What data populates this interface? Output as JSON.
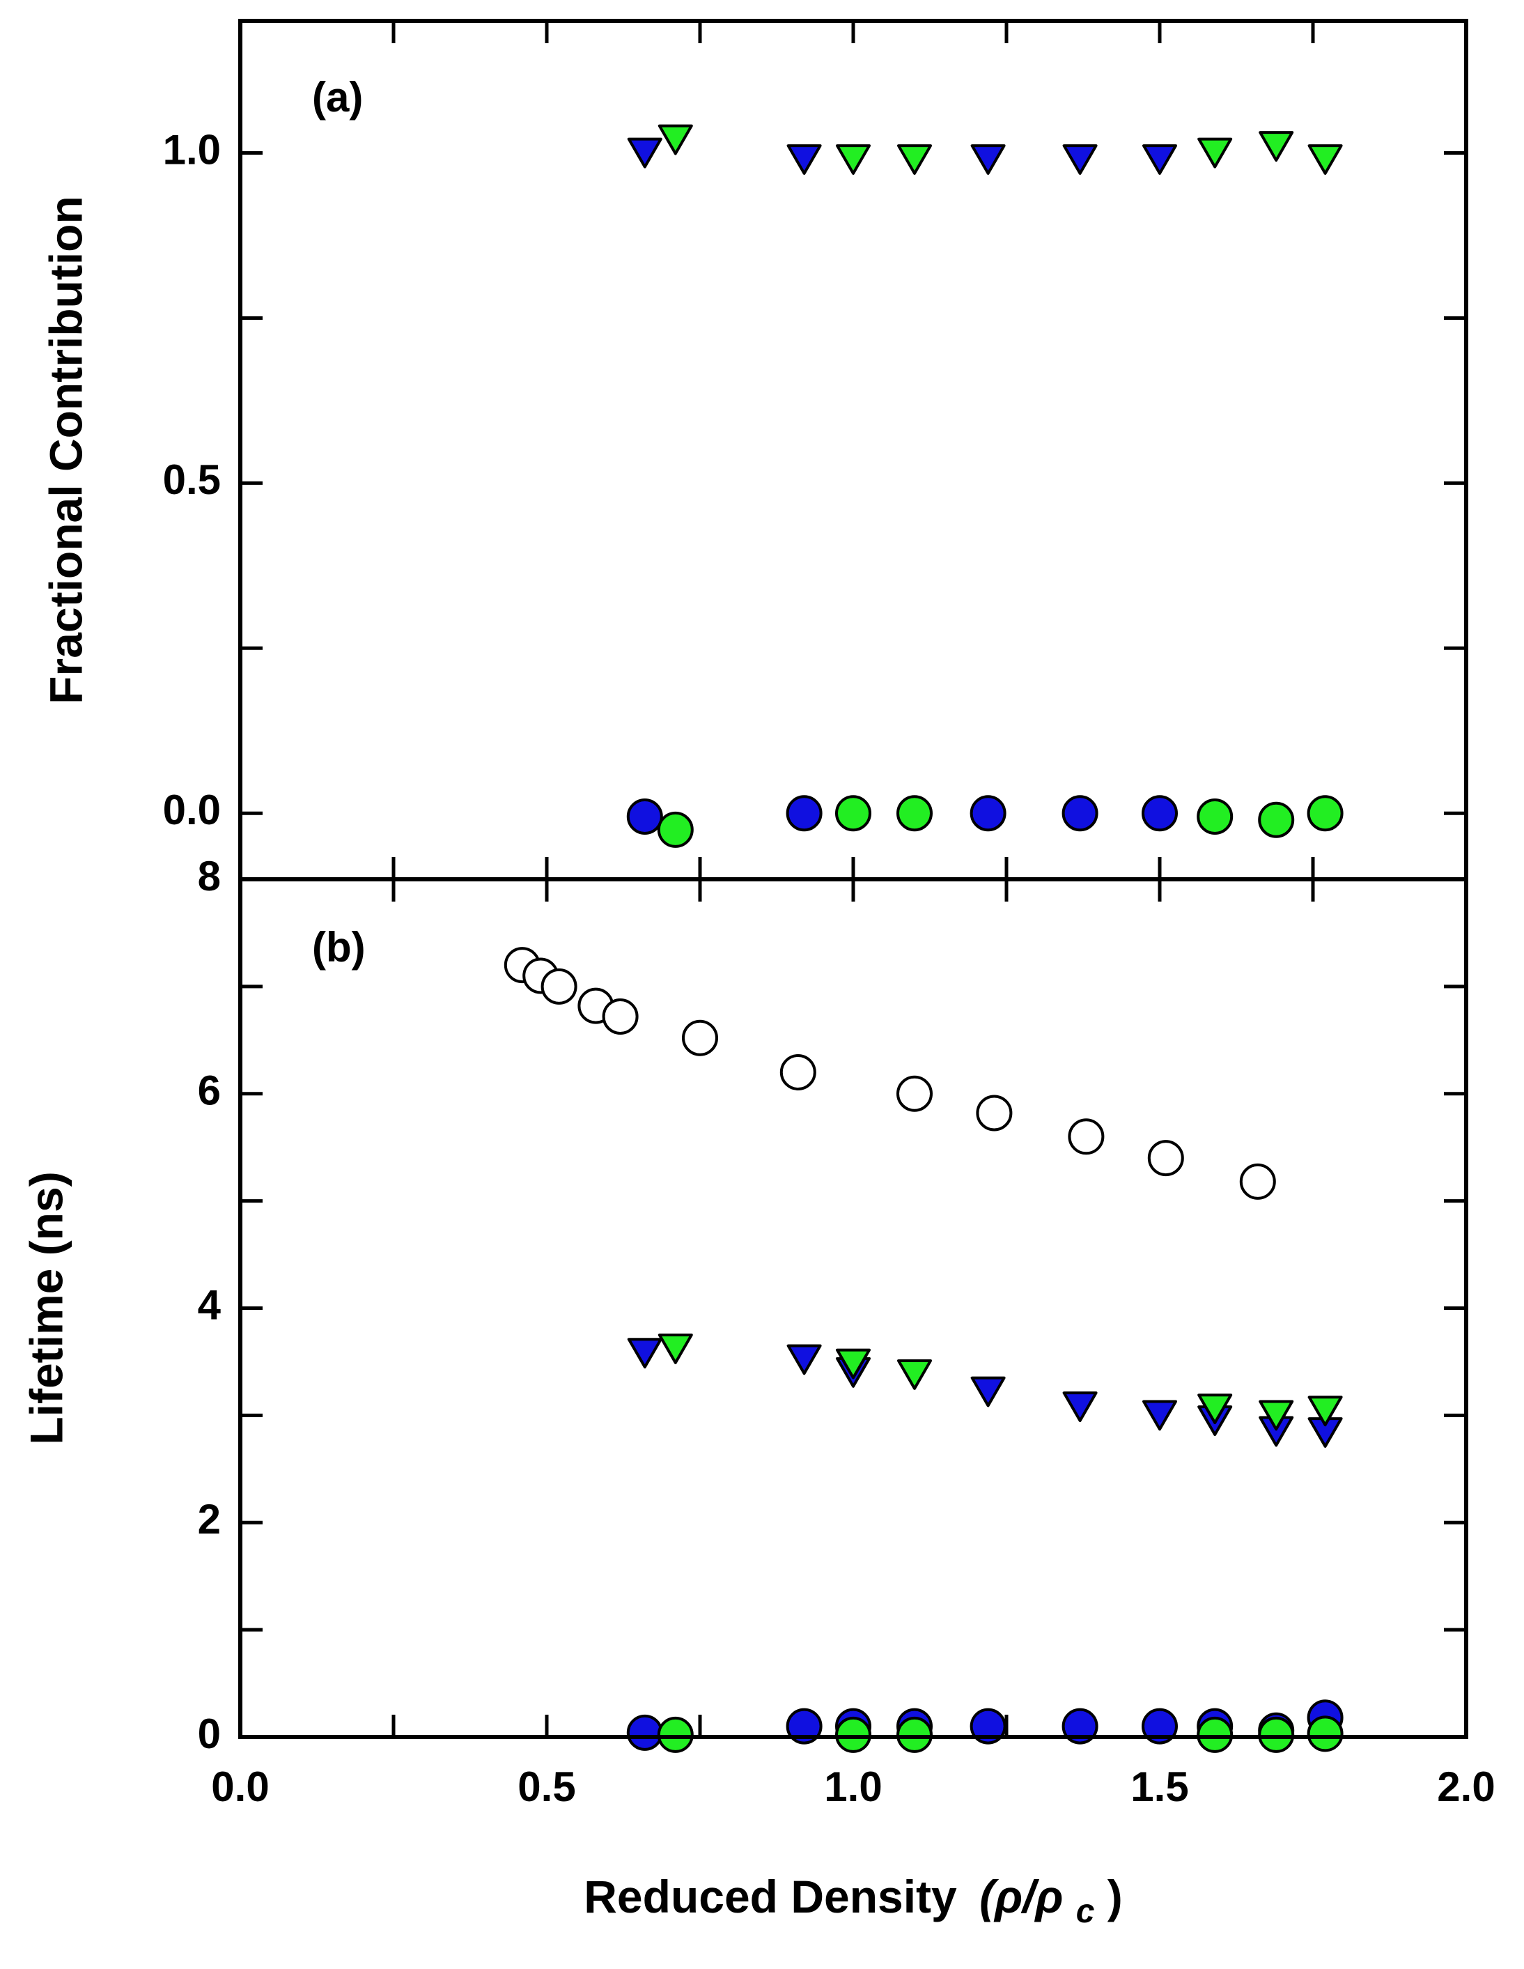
{
  "chart_data": [
    {
      "panel": "(a)",
      "type": "scatter",
      "ylabel": "Fractional Contribution",
      "xlim": [
        0.0,
        2.0
      ],
      "ylim": [
        -0.1,
        1.2
      ],
      "yticks": [
        0.0,
        0.5,
        1.0
      ],
      "ytick_labels": [
        "0.0",
        "0.5",
        "1.0"
      ],
      "y_minor_ticks": [
        0.25,
        0.75
      ],
      "series": [
        {
          "name": "blue-triangles",
          "marker": "triangle-down",
          "fill": "#1010e0",
          "x": [
            0.66,
            0.92,
            1.22,
            1.37,
            1.5
          ],
          "y": [
            1.0,
            0.99,
            0.99,
            0.99,
            0.99
          ]
        },
        {
          "name": "green-triangles",
          "marker": "triangle-down",
          "fill": "#22ee22",
          "x": [
            0.71,
            1.0,
            1.1,
            1.59,
            1.69,
            1.77
          ],
          "y": [
            1.02,
            0.99,
            0.99,
            1.0,
            1.01,
            0.99
          ]
        },
        {
          "name": "blue-circles",
          "marker": "circle",
          "fill": "#1010e0",
          "x": [
            0.66,
            0.92,
            1.22,
            1.37,
            1.5
          ],
          "y": [
            -0.005,
            0.0,
            0.0,
            0.0,
            0.0
          ]
        },
        {
          "name": "green-circles",
          "marker": "circle",
          "fill": "#22ee22",
          "x": [
            0.71,
            1.0,
            1.1,
            1.59,
            1.69,
            1.77
          ],
          "y": [
            -0.025,
            0.0,
            0.0,
            -0.005,
            -0.01,
            0.0
          ]
        }
      ]
    },
    {
      "panel": "(b)",
      "type": "scatter",
      "ylabel": "Lifetime (ns)",
      "xlabel": "Reduced Density",
      "xlabel_symbol": "(ρ/ρ",
      "xlabel_subscript": "c",
      "xlabel_close": ")",
      "xlim": [
        0.0,
        2.0
      ],
      "ylim": [
        0,
        8
      ],
      "xticks": [
        0.0,
        0.5,
        1.0,
        1.5,
        2.0
      ],
      "xtick_labels": [
        "0.0",
        "0.5",
        "1.0",
        "1.5",
        "2.0"
      ],
      "x_minor_ticks": [
        0.25,
        0.75,
        1.25,
        1.75
      ],
      "yticks": [
        0,
        2,
        4,
        6,
        8
      ],
      "ytick_labels": [
        "0",
        "2",
        "4",
        "6",
        "8"
      ],
      "y_minor_ticks": [
        1,
        3,
        5,
        7
      ],
      "series": [
        {
          "name": "open-circles",
          "marker": "circle",
          "fill": "#ffffff",
          "x": [
            0.46,
            0.49,
            0.52,
            0.58,
            0.62,
            0.75,
            0.91,
            1.1,
            1.23,
            1.38,
            1.51,
            1.66
          ],
          "y": [
            7.2,
            7.1,
            7.0,
            6.82,
            6.72,
            6.52,
            6.2,
            6.0,
            5.82,
            5.6,
            5.4,
            5.18
          ]
        },
        {
          "name": "blue-triangles",
          "marker": "triangle-down",
          "fill": "#1010e0",
          "x": [
            0.66,
            0.92,
            1.0,
            1.22,
            1.37,
            1.5,
            1.59,
            1.69,
            1.77
          ],
          "y": [
            3.58,
            3.52,
            3.4,
            3.22,
            3.08,
            3.0,
            2.95,
            2.85,
            2.84
          ]
        },
        {
          "name": "green-triangles",
          "marker": "triangle-down",
          "fill": "#22ee22",
          "x": [
            0.71,
            1.0,
            1.1,
            1.59,
            1.69,
            1.77
          ],
          "y": [
            3.62,
            3.48,
            3.38,
            3.06,
            3.0,
            3.04
          ]
        },
        {
          "name": "blue-circles",
          "marker": "circle",
          "fill": "#1010e0",
          "x": [
            0.66,
            0.92,
            1.0,
            1.1,
            1.22,
            1.37,
            1.5,
            1.59,
            1.69,
            1.77
          ],
          "y": [
            0.04,
            0.1,
            0.1,
            0.1,
            0.1,
            0.1,
            0.1,
            0.1,
            0.06,
            0.18
          ]
        },
        {
          "name": "green-circles",
          "marker": "circle",
          "fill": "#22ee22",
          "x": [
            0.71,
            1.0,
            1.1,
            1.59,
            1.69,
            1.77
          ],
          "y": [
            0.02,
            0.02,
            0.02,
            0.02,
            0.02,
            0.03
          ]
        }
      ]
    }
  ]
}
